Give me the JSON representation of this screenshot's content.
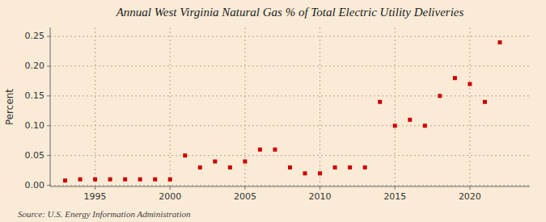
{
  "chart_data": {
    "type": "scatter",
    "title": "Annual West Virginia Natural Gas % of Total Electric Utility Deliveries",
    "ylabel": "Percent",
    "source": "Source: U.S. Energy Information Administration",
    "color": "#cc0000",
    "marker": "square",
    "x": [
      1993,
      1994,
      1995,
      1996,
      1997,
      1998,
      1999,
      2000,
      2001,
      2002,
      2003,
      2004,
      2005,
      2006,
      2007,
      2008,
      2009,
      2010,
      2011,
      2012,
      2013,
      2014,
      2015,
      2016,
      2017,
      2018,
      2019,
      2020,
      2021,
      2022
    ],
    "values": [
      0.008,
      0.01,
      0.01,
      0.01,
      0.01,
      0.01,
      0.01,
      0.01,
      0.05,
      0.03,
      0.04,
      0.03,
      0.04,
      0.06,
      0.06,
      0.03,
      0.02,
      0.02,
      0.03,
      0.03,
      0.03,
      0.14,
      0.1,
      0.11,
      0.1,
      0.15,
      0.18,
      0.17,
      0.14,
      0.24
    ],
    "xlim": [
      1992,
      2024
    ],
    "ylim": [
      -0.002,
      0.265
    ],
    "xticks": [
      1995,
      2000,
      2005,
      2010,
      2015,
      2020
    ],
    "yticks": [
      {
        "value": 0.0,
        "label": "0.00"
      },
      0.05,
      {
        "value": 0.1,
        "label": "0.10"
      },
      0.15,
      {
        "value": 0.2,
        "label": "0.20"
      },
      0.25
    ],
    "grid": true
  }
}
